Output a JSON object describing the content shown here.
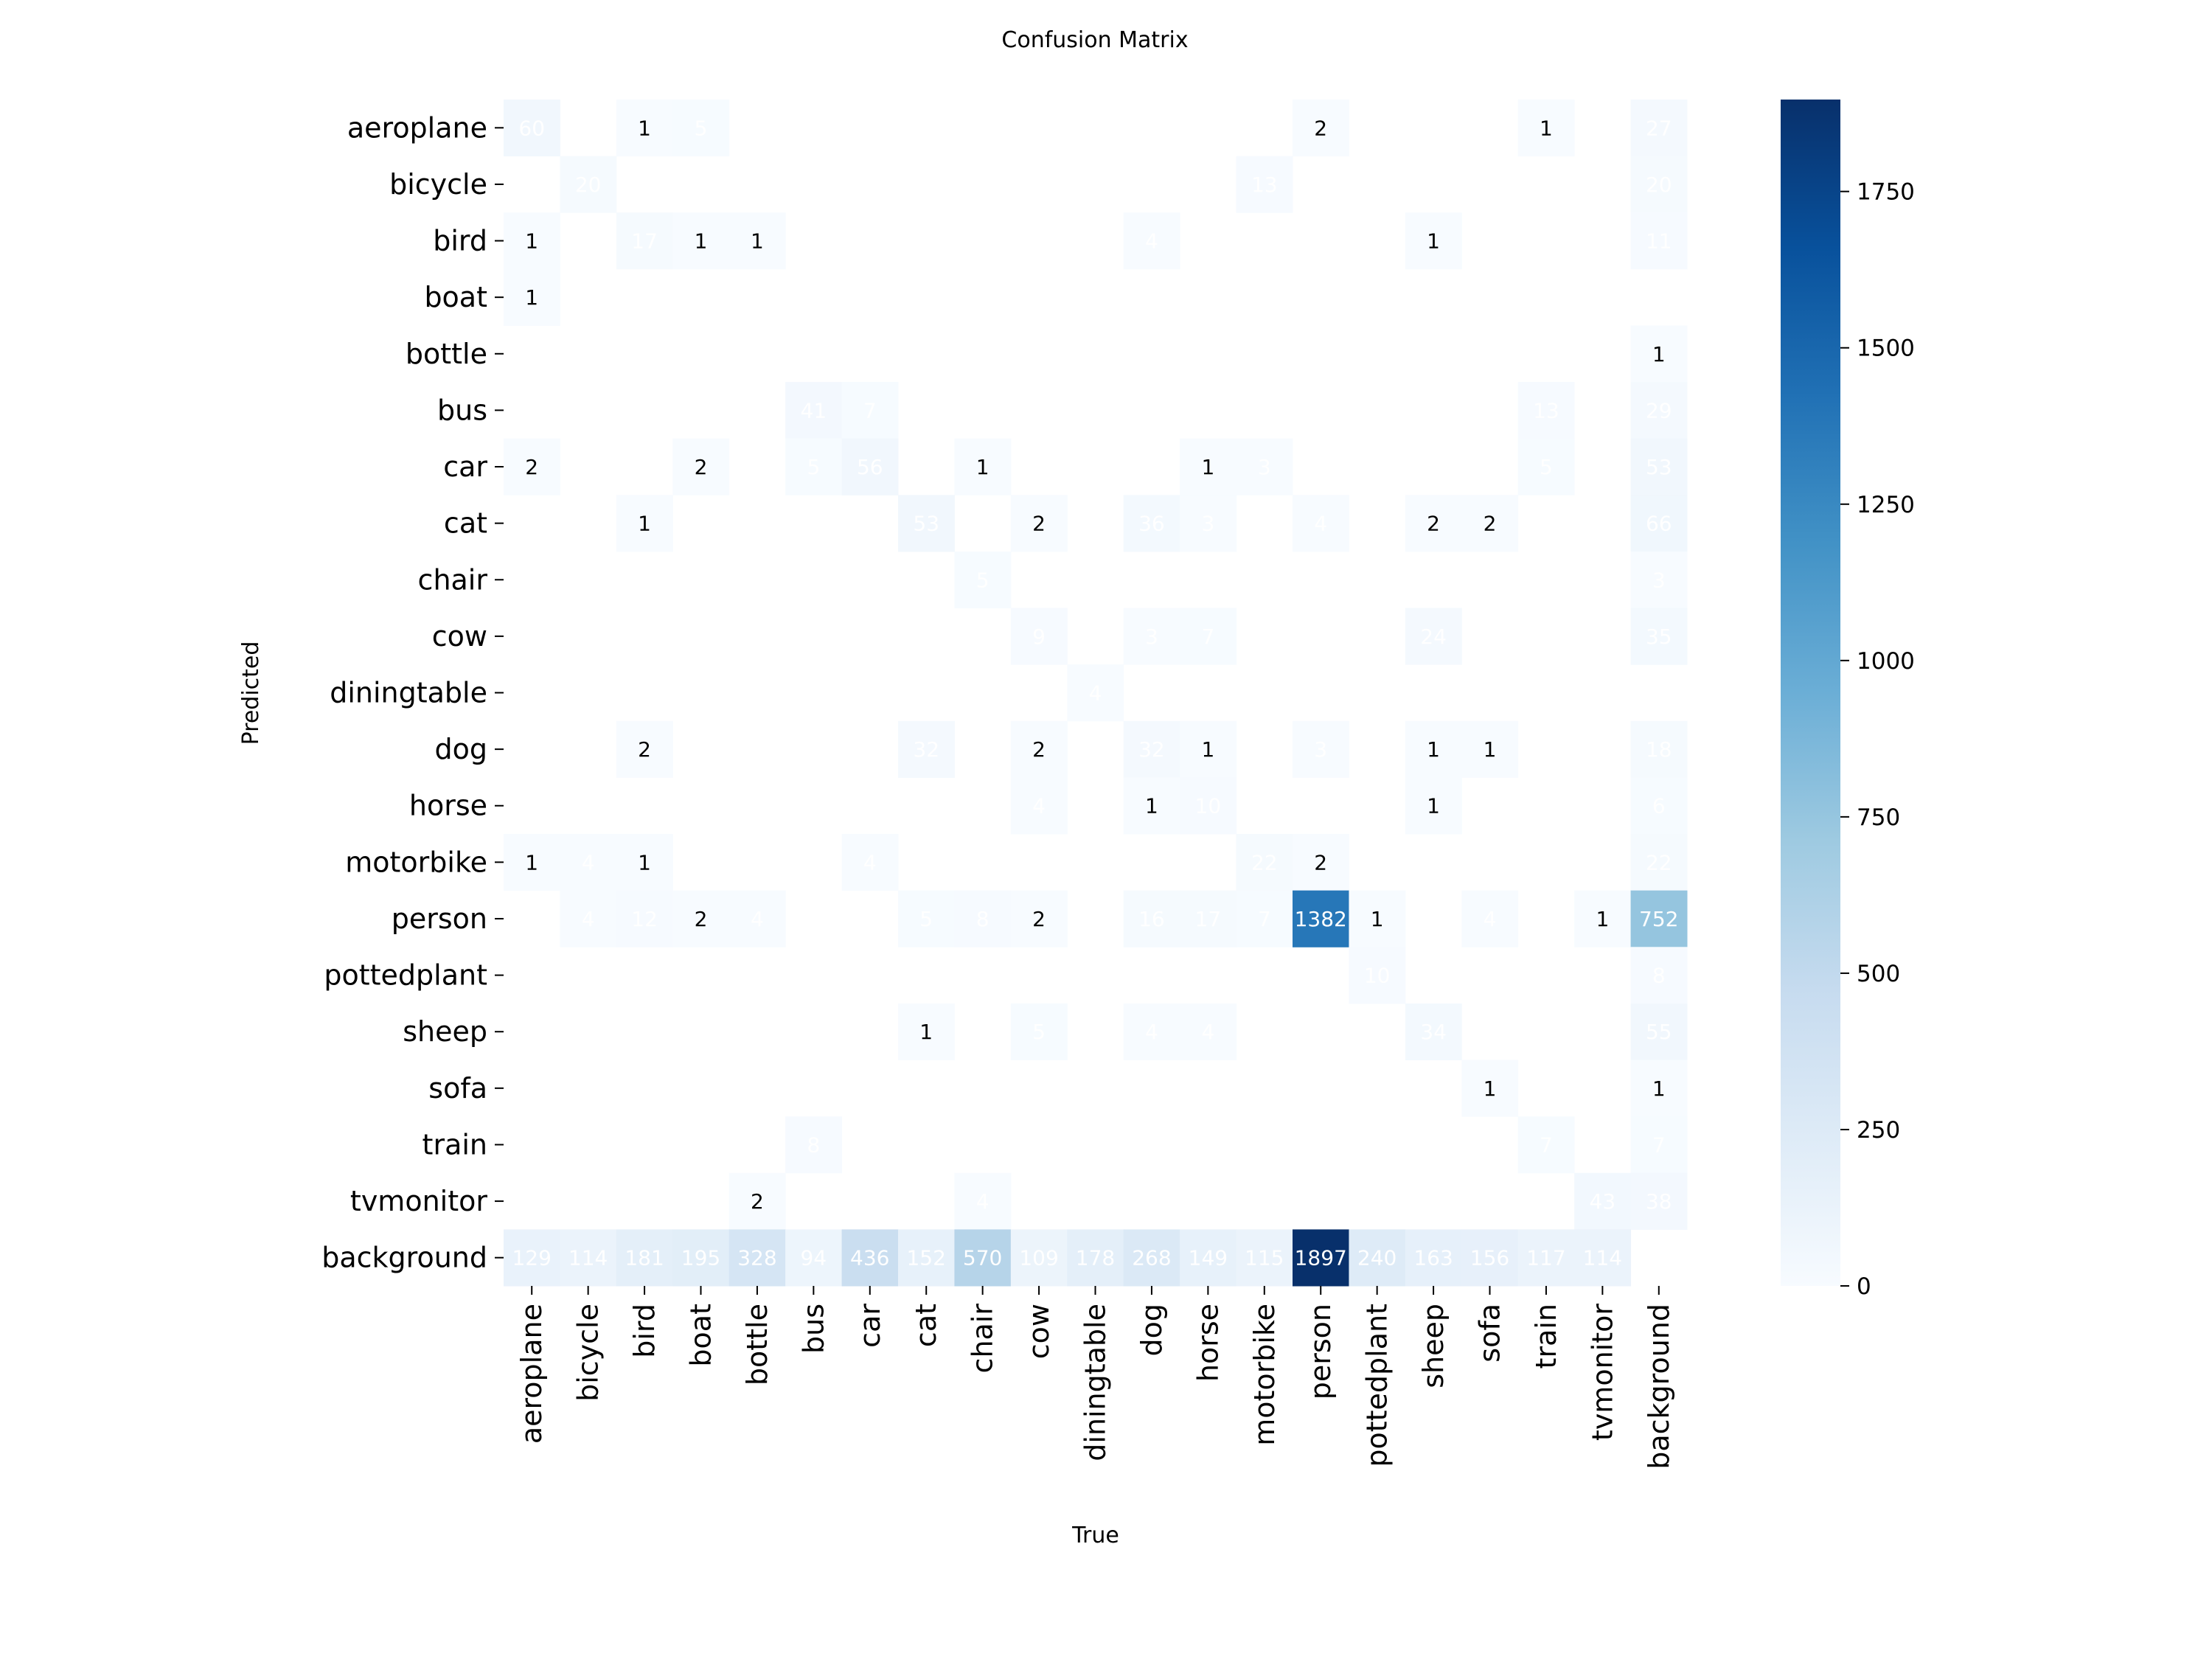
{
  "chart_data": {
    "type": "heatmap",
    "title": "Confusion Matrix",
    "xlabel": "True",
    "ylabel": "Predicted",
    "colormap": "Blues",
    "colors": [
      "#f7fbff",
      "#deebf7",
      "#c6dbef",
      "#9ecae1",
      "#6baed6",
      "#4292c6",
      "#2171b5",
      "#08519c",
      "#08306b"
    ],
    "vmin": 0,
    "vmax": 1897,
    "colorbar_ticks": [
      0,
      250,
      500,
      750,
      1000,
      1250,
      1500,
      1750
    ],
    "x_categories": [
      "aeroplane",
      "bicycle",
      "bird",
      "boat",
      "bottle",
      "bus",
      "car",
      "cat",
      "chair",
      "cow",
      "diningtable",
      "dog",
      "horse",
      "motorbike",
      "person",
      "pottedplant",
      "sheep",
      "sofa",
      "train",
      "tvmonitor",
      "background"
    ],
    "y_categories": [
      "aeroplane",
      "bicycle",
      "bird",
      "boat",
      "bottle",
      "bus",
      "car",
      "cat",
      "chair",
      "cow",
      "diningtable",
      "dog",
      "horse",
      "motorbike",
      "person",
      "pottedplant",
      "sheep",
      "sofa",
      "train",
      "tvmonitor",
      "background"
    ],
    "values": [
      [
        60,
        0,
        1,
        5,
        0,
        0,
        0,
        0,
        0,
        0,
        0,
        0,
        0,
        0,
        2,
        0,
        0,
        0,
        1,
        0,
        27
      ],
      [
        0,
        20,
        0,
        0,
        0,
        0,
        0,
        0,
        0,
        0,
        0,
        0,
        0,
        13,
        0,
        0,
        0,
        0,
        0,
        0,
        20
      ],
      [
        1,
        0,
        17,
        1,
        1,
        0,
        0,
        0,
        0,
        0,
        0,
        4,
        0,
        0,
        0,
        0,
        1,
        0,
        0,
        0,
        11
      ],
      [
        1,
        0,
        0,
        0,
        0,
        0,
        0,
        0,
        0,
        0,
        0,
        0,
        0,
        0,
        0,
        0,
        0,
        0,
        0,
        0,
        0
      ],
      [
        0,
        0,
        0,
        0,
        0,
        0,
        0,
        0,
        0,
        0,
        0,
        0,
        0,
        0,
        0,
        0,
        0,
        0,
        0,
        0,
        1
      ],
      [
        0,
        0,
        0,
        0,
        0,
        41,
        7,
        0,
        0,
        0,
        0,
        0,
        0,
        0,
        0,
        0,
        0,
        0,
        13,
        0,
        29
      ],
      [
        2,
        0,
        0,
        2,
        0,
        5,
        56,
        0,
        1,
        0,
        0,
        0,
        1,
        3,
        0,
        0,
        0,
        0,
        5,
        0,
        53
      ],
      [
        0,
        0,
        1,
        0,
        0,
        0,
        0,
        53,
        0,
        2,
        0,
        36,
        3,
        0,
        4,
        0,
        2,
        2,
        0,
        0,
        66
      ],
      [
        0,
        0,
        0,
        0,
        0,
        0,
        0,
        0,
        5,
        0,
        0,
        0,
        0,
        0,
        0,
        0,
        0,
        0,
        0,
        0,
        3
      ],
      [
        0,
        0,
        0,
        0,
        0,
        0,
        0,
        0,
        0,
        9,
        0,
        3,
        7,
        0,
        0,
        0,
        24,
        0,
        0,
        0,
        35
      ],
      [
        0,
        0,
        0,
        0,
        0,
        0,
        0,
        0,
        0,
        0,
        4,
        0,
        0,
        0,
        0,
        0,
        0,
        0,
        0,
        0,
        0
      ],
      [
        0,
        0,
        2,
        0,
        0,
        0,
        0,
        32,
        0,
        2,
        0,
        32,
        1,
        0,
        3,
        0,
        1,
        1,
        0,
        0,
        18
      ],
      [
        0,
        0,
        0,
        0,
        0,
        0,
        0,
        0,
        0,
        4,
        0,
        1,
        10,
        0,
        0,
        0,
        1,
        0,
        0,
        0,
        6
      ],
      [
        1,
        4,
        1,
        0,
        0,
        0,
        4,
        0,
        0,
        0,
        0,
        0,
        0,
        22,
        2,
        0,
        0,
        0,
        0,
        0,
        22
      ],
      [
        0,
        4,
        12,
        2,
        4,
        0,
        0,
        5,
        8,
        2,
        0,
        16,
        17,
        7,
        1382,
        1,
        0,
        4,
        0,
        1,
        752
      ],
      [
        0,
        0,
        0,
        0,
        0,
        0,
        0,
        0,
        0,
        0,
        0,
        0,
        0,
        0,
        0,
        10,
        0,
        0,
        0,
        0,
        8
      ],
      [
        0,
        0,
        0,
        0,
        0,
        0,
        0,
        1,
        0,
        5,
        0,
        4,
        4,
        0,
        0,
        0,
        34,
        0,
        0,
        0,
        55
      ],
      [
        0,
        0,
        0,
        0,
        0,
        0,
        0,
        0,
        0,
        0,
        0,
        0,
        0,
        0,
        0,
        0,
        0,
        1,
        0,
        0,
        1
      ],
      [
        0,
        0,
        0,
        0,
        0,
        8,
        0,
        0,
        0,
        0,
        0,
        0,
        0,
        0,
        0,
        0,
        0,
        0,
        7,
        0,
        7
      ],
      [
        0,
        0,
        0,
        0,
        2,
        0,
        0,
        0,
        4,
        0,
        0,
        0,
        0,
        0,
        0,
        0,
        0,
        0,
        0,
        43,
        38
      ],
      [
        129,
        114,
        181,
        195,
        328,
        94,
        436,
        152,
        570,
        109,
        178,
        268,
        149,
        115,
        1897,
        240,
        163,
        156,
        117,
        114,
        0
      ]
    ]
  }
}
